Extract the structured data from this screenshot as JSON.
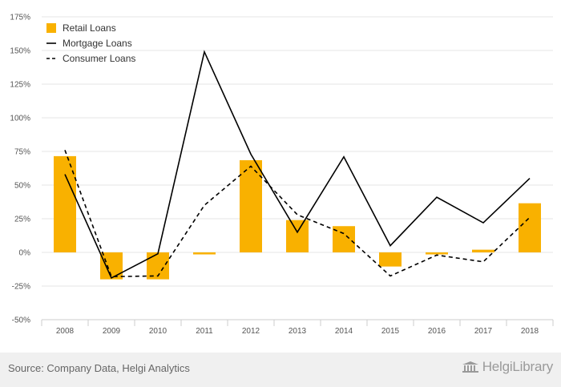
{
  "chart_data": {
    "type": "bar+line",
    "title": "",
    "xlabel": "",
    "ylabel": "",
    "categories": [
      "2008",
      "2009",
      "2010",
      "2011",
      "2012",
      "2013",
      "2014",
      "2015",
      "2016",
      "2017",
      "2018"
    ],
    "ylim": [
      -50,
      175
    ],
    "yticks": [
      -50,
      -25,
      0,
      25,
      50,
      75,
      100,
      125,
      150,
      175
    ],
    "ytick_labels": [
      "-50%",
      "-25%",
      "0%",
      "25%",
      "50%",
      "75%",
      "100%",
      "125%",
      "150%",
      "175%"
    ],
    "series": [
      {
        "name": "Retail Loans",
        "kind": "bar",
        "color": "#F9B100",
        "values": [
          71.5,
          -20,
          -20,
          -1.5,
          68.5,
          24,
          19.5,
          -10.5,
          -1.5,
          2,
          36.5
        ]
      },
      {
        "name": "Mortgage Loans",
        "kind": "line",
        "style": "solid",
        "color": "#000000",
        "values": [
          58,
          -19,
          -1,
          149,
          73,
          15,
          71,
          5,
          41,
          22,
          55
        ]
      },
      {
        "name": "Consumer Loans",
        "kind": "line",
        "style": "dashed",
        "color": "#000000",
        "values": [
          76,
          -18,
          -17.5,
          35,
          64,
          28,
          14,
          -17.5,
          -2,
          -7,
          26
        ]
      }
    ],
    "legend_position": "top-left",
    "grid": true
  },
  "footer": {
    "source": "Source: Company Data, Helgi Analytics",
    "brand": "HelgiLibrary"
  },
  "icons": {
    "brand_logo": "library-building-icon"
  }
}
